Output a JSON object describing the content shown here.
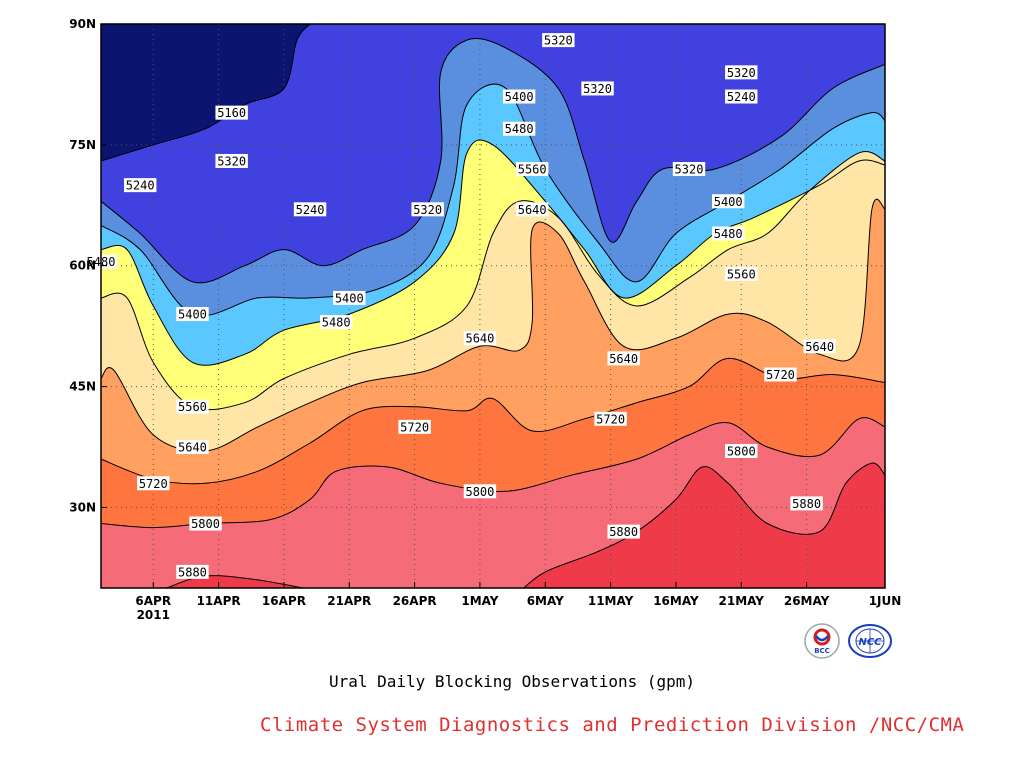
{
  "colors": {
    "levels": [
      "#0b1470",
      "#1a1fd9",
      "#4141e0",
      "#5a8fe0",
      "#5ac8ff",
      "#ffff78",
      "#ffe6a6",
      "#ffa060",
      "#ff7540",
      "#f56c78",
      "#ef3a4a"
    ],
    "credit": "#e03030",
    "bcc_logo": "#cc2222",
    "ncc_logo": "#1a3fbf"
  },
  "chart_data": {
    "type": "contour",
    "title": "Ural Daily Blocking Observations (gpm)",
    "credit": "Climate System Diagnostics and Prediction Division /NCC/CMA",
    "year_label": "2011",
    "x_ticks": [
      "6APR",
      "11APR",
      "16APR",
      "21APR",
      "26APR",
      "1MAY",
      "6MAY",
      "11MAY",
      "16MAY",
      "21MAY",
      "26MAY",
      "1JUN"
    ],
    "y_ticks": [
      "30N",
      "45N",
      "60N",
      "75N",
      "90N"
    ],
    "x_range": [
      "2011-04-02",
      "2011-06-01"
    ],
    "y_range": [
      20,
      90
    ],
    "grid": true,
    "levels": [
      5160,
      5240,
      5320,
      5400,
      5480,
      5560,
      5640,
      5720,
      5800,
      5880
    ],
    "lines": [
      {
        "level": 5880,
        "points": [
          [
            "2011-04-07",
            20
          ],
          [
            "2011-04-10",
            21.5
          ],
          [
            "2011-04-14",
            21
          ],
          [
            "2011-04-19",
            19.5
          ]
        ]
      },
      {
        "level": 5880,
        "points": [
          [
            "2011-05-04",
            19.5
          ],
          [
            "2011-05-06",
            22
          ],
          [
            "2011-05-10",
            24.5
          ],
          [
            "2011-05-13",
            27
          ],
          [
            "2011-05-16",
            31
          ],
          [
            "2011-05-18",
            35
          ],
          [
            "2011-05-20",
            33
          ],
          [
            "2011-05-23",
            28
          ],
          [
            "2011-05-27",
            27
          ],
          [
            "2011-05-29",
            33
          ],
          [
            "2011-05-31",
            35.5
          ],
          [
            "2011-06-01",
            34
          ]
        ]
      },
      {
        "level": 5800,
        "points": [
          [
            "2011-04-02",
            28
          ],
          [
            "2011-04-06",
            27.5
          ],
          [
            "2011-04-10",
            28
          ],
          [
            "2011-04-15",
            28.5
          ],
          [
            "2011-04-18",
            31
          ],
          [
            "2011-04-20",
            34.5
          ],
          [
            "2011-04-24",
            35
          ],
          [
            "2011-04-28",
            33
          ],
          [
            "2011-05-03",
            32
          ],
          [
            "2011-05-08",
            34
          ],
          [
            "2011-05-13",
            36
          ],
          [
            "2011-05-17",
            39
          ],
          [
            "2011-05-20",
            40.5
          ],
          [
            "2011-05-23",
            37.5
          ],
          [
            "2011-05-27",
            36.5
          ],
          [
            "2011-05-30",
            41
          ],
          [
            "2011-06-01",
            40
          ]
        ]
      },
      {
        "level": 5720,
        "points": [
          [
            "2011-04-02",
            36
          ],
          [
            "2011-04-06",
            33.5
          ],
          [
            "2011-04-10",
            33
          ],
          [
            "2011-04-14",
            34.5
          ],
          [
            "2011-04-18",
            38
          ],
          [
            "2011-04-22",
            42
          ],
          [
            "2011-04-26",
            42.5
          ],
          [
            "2011-04-30",
            42
          ],
          [
            "2011-05-02",
            43.5
          ],
          [
            "2011-05-05",
            39.5
          ],
          [
            "2011-05-09",
            41
          ],
          [
            "2011-05-13",
            43
          ],
          [
            "2011-05-17",
            45
          ],
          [
            "2011-05-20",
            48.5
          ],
          [
            "2011-05-24",
            46
          ],
          [
            "2011-05-28",
            46.5
          ],
          [
            "2011-06-01",
            45.5
          ]
        ]
      },
      {
        "level": 5640,
        "points": [
          [
            "2011-04-02",
            46
          ],
          [
            "2011-04-03",
            47
          ],
          [
            "2011-04-06",
            39
          ],
          [
            "2011-04-10",
            37
          ],
          [
            "2011-04-14",
            40
          ],
          [
            "2011-04-18",
            43
          ],
          [
            "2011-04-22",
            45.5
          ],
          [
            "2011-04-27",
            47
          ],
          [
            "2011-05-01",
            50
          ],
          [
            "2011-05-04",
            49.5
          ],
          [
            "2011-05-05",
            53
          ],
          [
            "2011-05-05",
            64.5
          ],
          [
            "2011-05-07",
            64
          ],
          [
            "2011-05-09",
            58
          ],
          [
            "2011-05-12",
            50
          ],
          [
            "2011-05-16",
            51
          ],
          [
            "2011-05-20",
            54
          ],
          [
            "2011-05-23",
            53
          ],
          [
            "2011-05-27",
            49
          ],
          [
            "2011-05-30",
            50
          ],
          [
            "2011-05-31",
            67
          ],
          [
            "2011-06-01",
            67
          ]
        ]
      },
      {
        "level": 5560,
        "points": [
          [
            "2011-04-02",
            56
          ],
          [
            "2011-04-04",
            56
          ],
          [
            "2011-04-06",
            48
          ],
          [
            "2011-04-09",
            42.5
          ],
          [
            "2011-04-13",
            43
          ],
          [
            "2011-04-16",
            46
          ],
          [
            "2011-04-21",
            49
          ],
          [
            "2011-04-26",
            51
          ],
          [
            "2011-04-30",
            55
          ],
          [
            "2011-05-02",
            64
          ],
          [
            "2011-05-04",
            68
          ],
          [
            "2011-05-07",
            66
          ],
          [
            "2011-05-10",
            59
          ],
          [
            "2011-05-13",
            55
          ],
          [
            "2011-05-17",
            58.5
          ],
          [
            "2011-05-20",
            62
          ],
          [
            "2011-05-23",
            64
          ],
          [
            "2011-05-26",
            69
          ],
          [
            "2011-05-30",
            74
          ],
          [
            "2011-06-01",
            73
          ]
        ]
      },
      {
        "level": 5480,
        "points": [
          [
            "2011-04-02",
            62
          ],
          [
            "2011-04-04",
            62
          ],
          [
            "2011-04-06",
            55
          ],
          [
            "2011-04-09",
            48
          ],
          [
            "2011-04-13",
            49
          ],
          [
            "2011-04-16",
            52
          ],
          [
            "2011-04-21",
            54
          ],
          [
            "2011-04-26",
            58
          ],
          [
            "2011-04-29",
            64
          ],
          [
            "2011-04-30",
            74
          ],
          [
            "2011-05-02",
            75
          ],
          [
            "2011-05-06",
            68
          ],
          [
            "2011-05-09",
            62
          ],
          [
            "2011-05-12",
            56
          ],
          [
            "2011-05-16",
            60
          ],
          [
            "2011-05-19",
            64
          ],
          [
            "2011-05-22",
            66
          ],
          [
            "2011-05-27",
            70
          ],
          [
            "2011-05-30",
            73
          ],
          [
            "2011-06-01",
            72.5
          ]
        ]
      },
      {
        "level": 5400,
        "points": [
          [
            "2011-04-02",
            65
          ],
          [
            "2011-04-05",
            62
          ],
          [
            "2011-04-09",
            54
          ],
          [
            "2011-04-14",
            56
          ],
          [
            "2011-04-18",
            56
          ],
          [
            "2011-04-23",
            57
          ],
          [
            "2011-04-27",
            61
          ],
          [
            "2011-04-29",
            70
          ],
          [
            "2011-04-30",
            80
          ],
          [
            "2011-05-03",
            82
          ],
          [
            "2011-05-06",
            72
          ],
          [
            "2011-05-10",
            63
          ],
          [
            "2011-05-13",
            58
          ],
          [
            "2011-05-16",
            64
          ],
          [
            "2011-05-20",
            68
          ],
          [
            "2011-05-24",
            72
          ],
          [
            "2011-05-28",
            77
          ],
          [
            "2011-05-31",
            79
          ],
          [
            "2011-06-01",
            78
          ]
        ]
      },
      {
        "level": 5320,
        "points": [
          [
            "2011-04-02",
            68
          ],
          [
            "2011-04-05",
            64
          ],
          [
            "2011-04-09",
            58
          ],
          [
            "2011-04-13",
            60
          ],
          [
            "2011-04-16",
            62
          ],
          [
            "2011-04-19",
            60
          ],
          [
            "2011-04-22",
            62
          ],
          [
            "2011-04-26",
            65
          ],
          [
            "2011-04-28",
            73
          ],
          [
            "2011-04-28",
            84
          ],
          [
            "2011-04-30",
            88
          ],
          [
            "2011-05-03",
            87
          ],
          [
            "2011-05-07",
            82
          ],
          [
            "2011-05-09",
            73
          ],
          [
            "2011-05-11",
            63
          ],
          [
            "2011-05-13",
            68
          ],
          [
            "2011-05-15",
            72
          ],
          [
            "2011-05-19",
            72
          ],
          [
            "2011-05-24",
            76
          ],
          [
            "2011-05-28",
            82
          ],
          [
            "2011-06-01",
            85
          ]
        ]
      },
      {
        "level": 5240,
        "points": [
          [
            "2011-04-02",
            73
          ],
          [
            "2011-04-06",
            75
          ],
          [
            "2011-04-10",
            77
          ],
          [
            "2011-04-13",
            80
          ],
          [
            "2011-04-16",
            82
          ],
          [
            "2011-04-17",
            88
          ],
          [
            "2011-04-18",
            90
          ]
        ]
      }
    ],
    "labels": [
      {
        "level": 5160,
        "x": "2011-04-12",
        "y": 79
      },
      {
        "level": 5240,
        "x": "2011-04-05",
        "y": 70
      },
      {
        "level": 5320,
        "x": "2011-04-12",
        "y": 73
      },
      {
        "level": 5240,
        "x": "2011-04-18",
        "y": 67
      },
      {
        "level": 5320,
        "x": "2011-04-27",
        "y": 67
      },
      {
        "level": 5320,
        "x": "2011-05-07",
        "y": 88
      },
      {
        "level": 5400,
        "x": "2011-05-04",
        "y": 81
      },
      {
        "level": 5480,
        "x": "2011-05-04",
        "y": 77
      },
      {
        "level": 5560,
        "x": "2011-05-05",
        "y": 72
      },
      {
        "level": 5640,
        "x": "2011-05-05",
        "y": 67
      },
      {
        "level": 5320,
        "x": "2011-05-10",
        "y": 82
      },
      {
        "level": 5320,
        "x": "2011-05-21",
        "y": 84
      },
      {
        "level": 5240,
        "x": "2011-05-21",
        "y": 81
      },
      {
        "level": 5320,
        "x": "2011-05-17",
        "y": 72
      },
      {
        "level": 5400,
        "x": "2011-05-20",
        "y": 68
      },
      {
        "level": 5480,
        "x": "2011-05-20",
        "y": 64
      },
      {
        "level": 5560,
        "x": "2011-05-21",
        "y": 59
      },
      {
        "level": 5480,
        "x": "2011-04-02",
        "y": 60.5
      },
      {
        "level": 5400,
        "x": "2011-04-09",
        "y": 54
      },
      {
        "level": 5400,
        "x": "2011-04-21",
        "y": 56
      },
      {
        "level": 5480,
        "x": "2011-04-20",
        "y": 53
      },
      {
        "level": 5560,
        "x": "2011-04-09",
        "y": 42.5
      },
      {
        "level": 5640,
        "x": "2011-04-09",
        "y": 37.5
      },
      {
        "level": 5720,
        "x": "2011-04-06",
        "y": 33
      },
      {
        "level": 5800,
        "x": "2011-04-10",
        "y": 28
      },
      {
        "level": 5880,
        "x": "2011-04-09",
        "y": 22
      },
      {
        "level": 5720,
        "x": "2011-04-26",
        "y": 40
      },
      {
        "level": 5640,
        "x": "2011-05-01",
        "y": 51
      },
      {
        "level": 5800,
        "x": "2011-05-01",
        "y": 32
      },
      {
        "level": 5720,
        "x": "2011-05-11",
        "y": 41
      },
      {
        "level": 5640,
        "x": "2011-05-12",
        "y": 48.5
      },
      {
        "level": 5880,
        "x": "2011-05-12",
        "y": 27
      },
      {
        "level": 5720,
        "x": "2011-05-24",
        "y": 46.5
      },
      {
        "level": 5800,
        "x": "2011-05-21",
        "y": 37
      },
      {
        "level": 5880,
        "x": "2011-05-26",
        "y": 30.5
      },
      {
        "level": 5640,
        "x": "2011-05-27",
        "y": 50
      }
    ]
  }
}
